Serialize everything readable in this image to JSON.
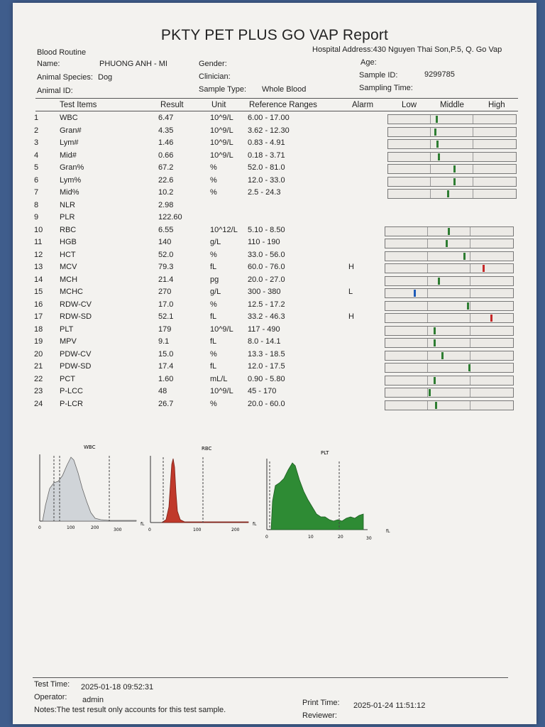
{
  "report": {
    "title": "PKTY PET PLUS GO VAP Report",
    "section": "Blood Routine",
    "hospital_address": "Hospital Address:430 Nguyen Thai Son,P.5, Q. Go Vap"
  },
  "patient": {
    "name_label": "Name:",
    "name_value": "PHUONG ANH - MI",
    "species_label": "Animal Species:",
    "species_value": "Dog",
    "animal_id_label": "Animal ID:",
    "gender_label": "Gender:",
    "clinician_label": "Clinician:",
    "sample_type_label": "Sample Type:",
    "sample_type_value": "Whole Blood",
    "age_label": "Age:",
    "sample_id_label": "Sample ID:",
    "sample_id_value": "9299785",
    "sampling_time_label": "Sampling Time:"
  },
  "table_headers": {
    "test_items": "Test Items",
    "result": "Result",
    "unit": "Unit",
    "reference": "Reference Ranges",
    "alarm": "Alarm",
    "low": "Low",
    "middle": "Middle",
    "high": "High"
  },
  "rows": [
    {
      "no": "1",
      "name": "WBC",
      "result": "6.47",
      "unit": "10^9/L",
      "ref": "6.00 - 17.00",
      "alarm": "",
      "gauge": 0.37,
      "mark": "#2e7d32"
    },
    {
      "no": "2",
      "name": "Gran#",
      "result": "4.35",
      "unit": "10^9/L",
      "ref": "3.62 - 12.30",
      "alarm": "",
      "gauge": 0.36,
      "mark": "#2e7d32"
    },
    {
      "no": "3",
      "name": "Lym#",
      "result": "1.46",
      "unit": "10^9/L",
      "ref": "0.83 - 4.91",
      "alarm": "",
      "gauge": 0.38,
      "mark": "#2e7d32"
    },
    {
      "no": "4",
      "name": "Mid#",
      "result": "0.66",
      "unit": "10^9/L",
      "ref": "0.18 - 3.71",
      "alarm": "",
      "gauge": 0.39,
      "mark": "#2e7d32"
    },
    {
      "no": "5",
      "name": "Gran%",
      "result": "67.2",
      "unit": "%",
      "ref": "52.0 - 81.0",
      "alarm": "",
      "gauge": 0.51,
      "mark": "#2e7d32"
    },
    {
      "no": "6",
      "name": "Lym%",
      "result": "22.6",
      "unit": "%",
      "ref": "12.0 - 33.0",
      "alarm": "",
      "gauge": 0.51,
      "mark": "#2e7d32"
    },
    {
      "no": "7",
      "name": "Mid%",
      "result": "10.2",
      "unit": "%",
      "ref": "2.5 - 24.3",
      "alarm": "",
      "gauge": 0.46,
      "mark": "#2e7d32"
    },
    {
      "no": "8",
      "name": "NLR",
      "result": "2.98",
      "unit": "",
      "ref": "",
      "alarm": "",
      "gauge": null,
      "mark": ""
    },
    {
      "no": "9",
      "name": "PLR",
      "result": "122.60",
      "unit": "",
      "ref": "",
      "alarm": "",
      "gauge": null,
      "mark": ""
    },
    {
      "no": "10",
      "name": "RBC",
      "result": "6.55",
      "unit": "10^12/L",
      "ref": "5.10 - 8.50",
      "alarm": "",
      "gauge": 0.49,
      "mark": "#2e7d32"
    },
    {
      "no": "11",
      "name": "HGB",
      "result": "140",
      "unit": "g/L",
      "ref": "110 - 190",
      "alarm": "",
      "gauge": 0.47,
      "mark": "#2e7d32"
    },
    {
      "no": "12",
      "name": "HCT",
      "result": "52.0",
      "unit": "%",
      "ref": "33.0 - 56.0",
      "alarm": "",
      "gauge": 0.61,
      "mark": "#2e7d32"
    },
    {
      "no": "13",
      "name": "MCV",
      "result": "79.3",
      "unit": "fL",
      "ref": "60.0 - 76.0",
      "alarm": "H",
      "gauge": 0.76,
      "mark": "#c62828"
    },
    {
      "no": "14",
      "name": "MCH",
      "result": "21.4",
      "unit": "pg",
      "ref": "20.0 - 27.0",
      "alarm": "",
      "gauge": 0.41,
      "mark": "#2e7d32"
    },
    {
      "no": "15",
      "name": "MCHC",
      "result": "270",
      "unit": "g/L",
      "ref": "300 - 380",
      "alarm": "L",
      "gauge": 0.22,
      "mark": "#1e5bb8"
    },
    {
      "no": "16",
      "name": "RDW-CV",
      "result": "17.0",
      "unit": "%",
      "ref": "12.5 - 17.2",
      "alarm": "",
      "gauge": 0.64,
      "mark": "#2e7d32"
    },
    {
      "no": "17",
      "name": "RDW-SD",
      "result": "52.1",
      "unit": "fL",
      "ref": "33.2 - 46.3",
      "alarm": "H",
      "gauge": 0.82,
      "mark": "#c62828"
    },
    {
      "no": "18",
      "name": "PLT",
      "result": "179",
      "unit": "10^9/L",
      "ref": "117 - 490",
      "alarm": "",
      "gauge": 0.38,
      "mark": "#2e7d32"
    },
    {
      "no": "19",
      "name": "MPV",
      "result": "9.1",
      "unit": "fL",
      "ref": "8.0 - 14.1",
      "alarm": "",
      "gauge": 0.38,
      "mark": "#2e7d32"
    },
    {
      "no": "20",
      "name": "PDW-CV",
      "result": "15.0",
      "unit": "%",
      "ref": "13.3 - 18.5",
      "alarm": "",
      "gauge": 0.44,
      "mark": "#2e7d32"
    },
    {
      "no": "21",
      "name": "PDW-SD",
      "result": "17.4",
      "unit": "fL",
      "ref": "12.0 - 17.5",
      "alarm": "",
      "gauge": 0.65,
      "mark": "#2e7d32"
    },
    {
      "no": "22",
      "name": "PCT",
      "result": "1.60",
      "unit": "mL/L",
      "ref": "0.90 - 5.80",
      "alarm": "",
      "gauge": 0.38,
      "mark": "#2e7d32"
    },
    {
      "no": "23",
      "name": "P-LCC",
      "result": "48",
      "unit": "10^9/L",
      "ref": "45 - 170",
      "alarm": "",
      "gauge": 0.34,
      "mark": "#2e7d32"
    },
    {
      "no": "24",
      "name": "P-LCR",
      "result": "26.7",
      "unit": "%",
      "ref": "20.0 - 60.0",
      "alarm": "",
      "gauge": 0.39,
      "mark": "#2e7d32"
    }
  ],
  "histograms": [
    {
      "label": "WBC",
      "unit": "fL",
      "ticks": [
        "0",
        "100",
        "200",
        "300"
      ],
      "color": "#d0d4d8"
    },
    {
      "label": "RBC",
      "unit": "fL",
      "ticks": [
        "0",
        "100",
        "200"
      ],
      "color": "#c0392b"
    },
    {
      "label": "PLT",
      "unit": "fL",
      "ticks": [
        "0",
        "10",
        "20",
        "30"
      ],
      "color": "#2e8b34"
    }
  ],
  "footer": {
    "test_time_label": "Test Time:",
    "test_time_value": "2025-01-18 09:52:31",
    "operator_label": "Operator:",
    "operator_value": "admin",
    "notes": "Notes:The test result only accounts for this test sample.",
    "print_time_label": "Print Time:",
    "print_time_value": "2025-01-24 11:51:12",
    "reviewer_label": "Reviewer:"
  }
}
